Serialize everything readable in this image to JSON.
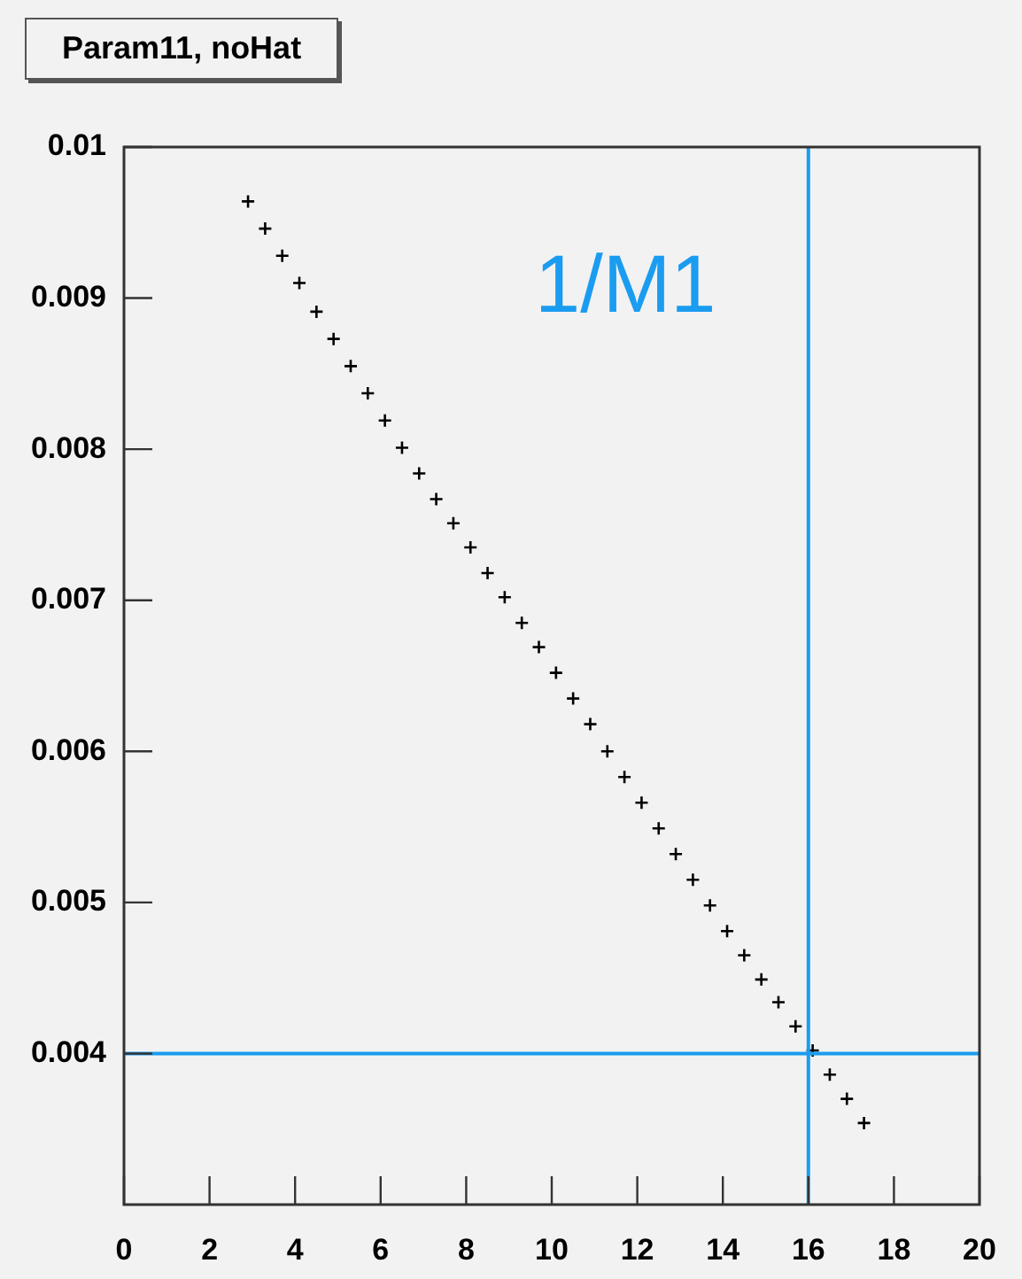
{
  "chart_data": {
    "type": "scatter",
    "title": "Param11, noHat",
    "x": [
      2.9,
      3.3,
      3.7,
      4.1,
      4.5,
      4.9,
      5.3,
      5.7,
      6.1,
      6.5,
      6.9,
      7.3,
      7.7,
      8.1,
      8.5,
      8.9,
      9.3,
      9.7,
      10.1,
      10.5,
      10.9,
      11.3,
      11.7,
      12.1,
      12.5,
      12.9,
      13.3,
      13.7,
      14.1,
      14.5,
      14.9,
      15.3,
      15.7,
      16.1,
      16.5,
      16.9,
      17.3
    ],
    "series": [
      {
        "color": "#000000",
        "values": [
          0.00964,
          0.00946,
          0.00928,
          0.0091,
          0.00891,
          0.00873,
          0.00855,
          0.00837,
          0.00819,
          0.00801,
          0.00784,
          0.00767,
          0.00751,
          0.00735,
          0.00718,
          0.00702,
          0.00685,
          0.00669,
          0.00652,
          0.00635,
          0.00618,
          0.006,
          0.00583,
          0.00566,
          0.00549,
          0.00532,
          0.00515,
          0.00498,
          0.00481,
          0.00465,
          0.00449,
          0.00434,
          0.00418,
          0.00402,
          0.00386,
          0.0037,
          0.00354
        ]
      }
    ],
    "marker": "cross",
    "grid": false,
    "legend": false,
    "xlim": [
      0,
      20
    ],
    "xticks": [
      0,
      2,
      4,
      6,
      8,
      10,
      12,
      14,
      16,
      18,
      20
    ],
    "ylim": [
      0.003,
      0.01
    ],
    "yticks": [
      0.004,
      0.005,
      0.006,
      0.007,
      0.008,
      0.009,
      0.01
    ],
    "ref_lines": [
      {
        "axis": "x",
        "value": 16,
        "color": "#1a9cf0"
      },
      {
        "axis": "y",
        "value": 0.004,
        "color": "#1a9cf0"
      }
    ],
    "annotations": [
      "1/M1"
    ]
  }
}
